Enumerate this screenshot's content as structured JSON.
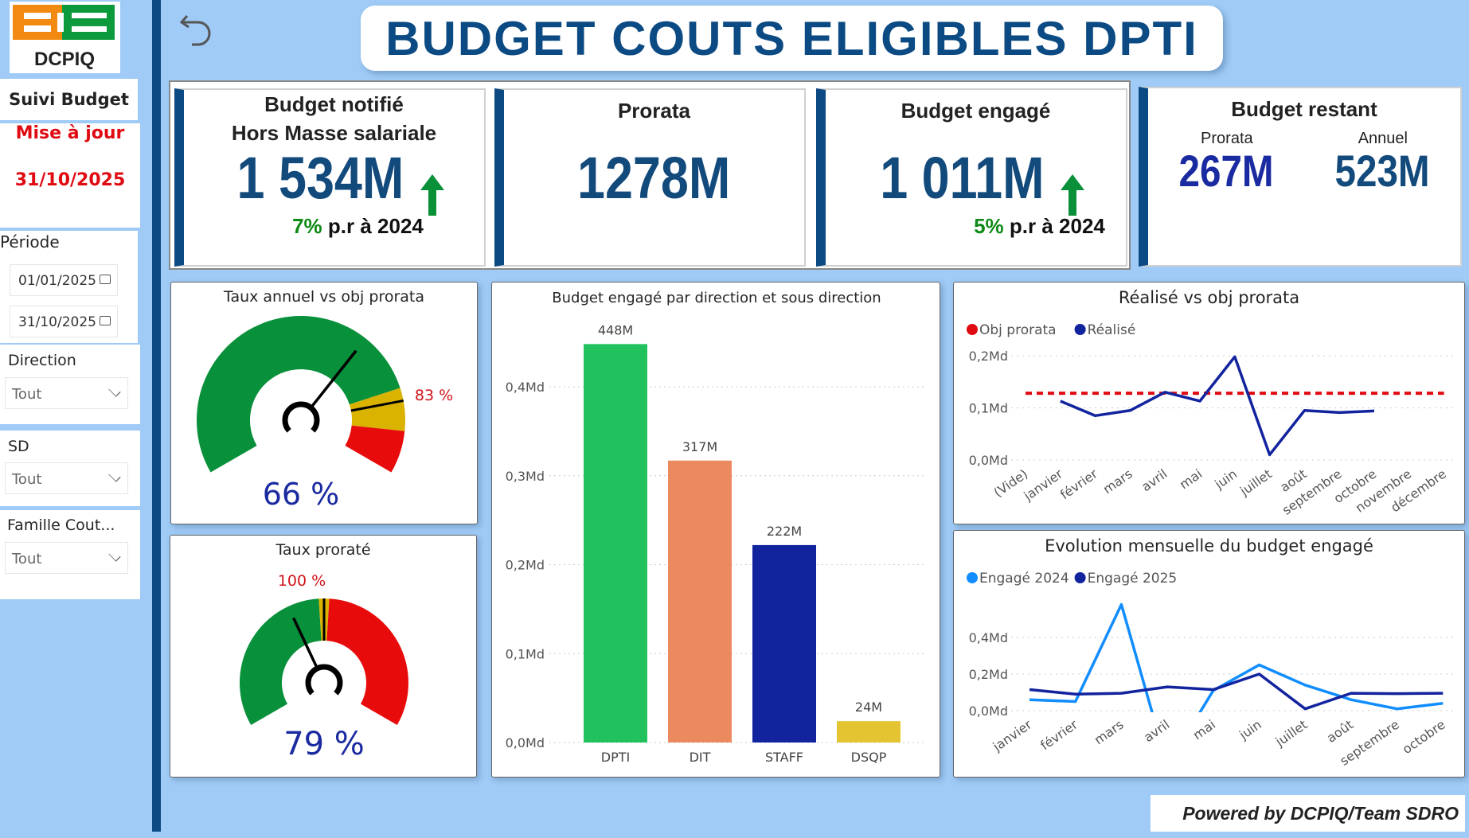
{
  "logo": {
    "text": "CIE",
    "subtext": "DCPIQ"
  },
  "sidebar": {
    "section_title": "Suivi Budget",
    "update_label": "Mise à jour",
    "update_date": "31/10/2025",
    "period_label": "Période",
    "date_from": "01/01/2025",
    "date_to": "31/10/2025",
    "filters": [
      {
        "label": "Direction",
        "value": "Tout"
      },
      {
        "label": "SD",
        "value": "Tout"
      },
      {
        "label": "Famille Cout...",
        "value": "Tout"
      }
    ]
  },
  "header": {
    "title": "BUDGET COUTS ELIGIBLES DPTI",
    "back_icon": "undo-arrow-icon"
  },
  "kpis": {
    "notifie": {
      "title1": "Budget notifié",
      "title2": "Hors Masse salariale",
      "value": "1 534M",
      "trend": "up",
      "change": "7%",
      "change_suffix": "p.r à 2024"
    },
    "prorata": {
      "title": "Prorata",
      "value": "1278M"
    },
    "engage": {
      "title": "Budget engagé",
      "value": "1 011M",
      "trend": "up",
      "change": "5%",
      "change_suffix": "p.r à 2024"
    },
    "restant": {
      "title": "Budget restant",
      "prorata_label": "Prorata",
      "prorata_value": "267M",
      "annuel_label": "Annuel",
      "annuel_value": "523M"
    }
  },
  "colors": {
    "navy": "#0b4a83",
    "green": "#08903a",
    "yellow": "#dab200",
    "red": "#e80b0b",
    "arrow_green": "#0a9038",
    "obj": "#e00b12",
    "realise": "#12239e",
    "engage2024": "#118dff",
    "engage2025": "#12239e"
  },
  "chart_data": [
    {
      "type": "gauge",
      "title": "Taux annuel vs obj prorata",
      "value": 66,
      "value_label": "66 %",
      "target": 83,
      "target_label": "83 %",
      "min": 0,
      "max": 100,
      "bands": [
        {
          "from": 0,
          "to": 80,
          "color": "#08903a"
        },
        {
          "from": 80,
          "to": 90,
          "color": "#dab200"
        },
        {
          "from": 90,
          "to": 100,
          "color": "#e80b0b"
        }
      ]
    },
    {
      "type": "gauge",
      "title": "Taux proraté",
      "value": 79,
      "value_label": "79 %",
      "target": 100,
      "target_label": "100 %",
      "min": 0,
      "max": 200,
      "bands": [
        {
          "from": 0,
          "to": 97,
          "color": "#08903a"
        },
        {
          "from": 97,
          "to": 103,
          "color": "#dab200"
        },
        {
          "from": 103,
          "to": 200,
          "color": "#e80b0b"
        }
      ]
    },
    {
      "type": "bar",
      "title": "Budget engagé par direction et sous direction",
      "categories": [
        "DPTI",
        "DIT",
        "STAFF",
        "DSQP"
      ],
      "values": [
        0.448,
        0.317,
        0.222,
        0.024
      ],
      "data_labels": [
        "448M",
        "317M",
        "222M",
        "24M"
      ],
      "colors": [
        "#21c25e",
        "#eb8a5f",
        "#12239e",
        "#e5c431"
      ],
      "ylim": [
        0,
        0.45
      ],
      "yticks": [
        0,
        0.1,
        0.2,
        0.3,
        0.4
      ],
      "ytick_labels": [
        "0,0Md",
        "0,1Md",
        "0,2Md",
        "0,3Md",
        "0,4Md"
      ],
      "grid": true
    },
    {
      "type": "line",
      "title": "Réalisé vs obj prorata",
      "categories": [
        "(Vide)",
        "janvier",
        "février",
        "mars",
        "avril",
        "mai",
        "juin",
        "juillet",
        "août",
        "septembre",
        "octobre",
        "novembre",
        "décembre"
      ],
      "series": [
        {
          "name": "Obj prorata",
          "style": "dashed",
          "values": [
            0.128,
            0.128,
            0.128,
            0.128,
            0.128,
            0.128,
            0.128,
            0.128,
            0.128,
            0.128,
            0.128,
            0.128,
            0.128
          ]
        },
        {
          "name": "Réalisé",
          "values": [
            null,
            0.113,
            0.085,
            0.095,
            0.13,
            0.113,
            0.198,
            0.01,
            0.095,
            0.091,
            0.094,
            null,
            null
          ]
        }
      ],
      "ylim": [
        0,
        0.2
      ],
      "yticks": [
        0,
        0.1,
        0.2
      ],
      "ytick_labels": [
        "0,0Md",
        "0,1Md",
        "0,2Md"
      ],
      "legend": "top-left",
      "grid": true
    },
    {
      "type": "line",
      "title": "Evolution mensuelle du budget engagé",
      "categories": [
        "janvier",
        "février",
        "mars",
        "avril",
        "mai",
        "juin",
        "juillet",
        "août",
        "septembre",
        "octobre"
      ],
      "series": [
        {
          "name": "Engagé 2024",
          "values": [
            0.06,
            0.05,
            0.58,
            -0.3,
            0.11,
            0.25,
            0.14,
            0.06,
            0.01,
            0.04
          ]
        },
        {
          "name": "Engagé 2025",
          "values": [
            0.115,
            0.09,
            0.095,
            0.13,
            0.115,
            0.2,
            0.01,
            0.095,
            0.093,
            0.095
          ]
        }
      ],
      "ylim": [
        0,
        0.6
      ],
      "yticks": [
        0,
        0.2,
        0.4
      ],
      "ytick_labels": [
        "0,0Md",
        "0,2Md",
        "0,4Md"
      ],
      "legend": "top-left",
      "grid": true
    }
  ],
  "footer": {
    "powered": "Powered by DCPIQ/Team SDRO"
  }
}
